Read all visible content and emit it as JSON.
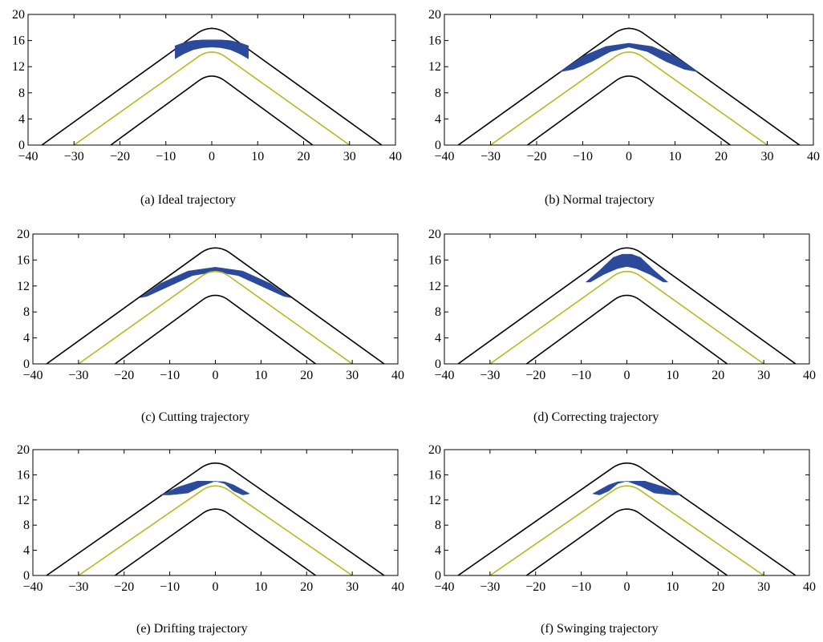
{
  "chart_data": [
    {
      "type": "area",
      "caption": "(a)  Ideal trajectory",
      "xlim": [
        -40,
        40
      ],
      "ylim": [
        0,
        20
      ],
      "xticks": [
        -40,
        -30,
        -20,
        -10,
        0,
        10,
        20,
        30,
        40
      ],
      "yticks": [
        0,
        4,
        8,
        12,
        16,
        20
      ],
      "xtick_labels": [
        "−40",
        "−30",
        "−20",
        "−10",
        "0",
        "10",
        "20",
        "30",
        "40"
      ],
      "ytick_labels": [
        "0",
        "4",
        "8",
        "12",
        "16",
        "20"
      ],
      "road_outer": {
        "half_width": 37,
        "apex": 18.7,
        "radius": 7
      },
      "road_inner": {
        "half_width": 22,
        "apex": 11.3,
        "radius": 6
      },
      "centerline": {
        "half_width": 30,
        "apex": 15,
        "radius": 6.5
      },
      "trajectory_region": {
        "upper": [
          [
            -8,
            15.2
          ],
          [
            -6,
            15.7
          ],
          [
            -4,
            16.0
          ],
          [
            -2,
            16.1
          ],
          [
            0,
            16.1
          ],
          [
            2,
            16.1
          ],
          [
            4,
            16.0
          ],
          [
            6,
            15.7
          ],
          [
            8,
            15.2
          ]
        ],
        "lower": [
          [
            8,
            13.2
          ],
          [
            6,
            14.0
          ],
          [
            4,
            14.6
          ],
          [
            2,
            14.9
          ],
          [
            0,
            15.0
          ],
          [
            -2,
            14.9
          ],
          [
            -4,
            14.6
          ],
          [
            -6,
            14.0
          ],
          [
            -8,
            13.2
          ]
        ]
      },
      "colors": {
        "trajectory": "#2b4a9c",
        "centerline": "#b8b820",
        "road": "#000000"
      }
    },
    {
      "type": "area",
      "caption": "(b)  Normal trajectory",
      "xlim": [
        -40,
        40
      ],
      "ylim": [
        0,
        20
      ],
      "xticks": [
        -40,
        -30,
        -20,
        -10,
        0,
        10,
        20,
        30,
        40
      ],
      "yticks": [
        0,
        4,
        8,
        12,
        16,
        20
      ],
      "xtick_labels": [
        "−40",
        "−30",
        "−20",
        "−10",
        "0",
        "10",
        "20",
        "30",
        "40"
      ],
      "ytick_labels": [
        "0",
        "4",
        "8",
        "12",
        "16",
        "20"
      ],
      "road_outer": {
        "half_width": 37,
        "apex": 18.7,
        "radius": 7
      },
      "road_inner": {
        "half_width": 22,
        "apex": 11.3,
        "radius": 6
      },
      "centerline": {
        "half_width": 30,
        "apex": 15,
        "radius": 6.5
      },
      "trajectory_region": {
        "upper": [
          [
            -15,
            11.2
          ],
          [
            -10,
            13.6
          ],
          [
            -5,
            15.1
          ],
          [
            0,
            15.6
          ],
          [
            5,
            15.1
          ],
          [
            10,
            13.6
          ],
          [
            15,
            11.2
          ]
        ],
        "lower": [
          [
            12,
            11.6
          ],
          [
            8,
            12.8
          ],
          [
            4,
            14.3
          ],
          [
            0,
            15.0
          ],
          [
            -4,
            14.3
          ],
          [
            -8,
            12.8
          ],
          [
            -12,
            11.6
          ]
        ]
      },
      "colors": {
        "trajectory": "#2b4a9c",
        "centerline": "#b8b820",
        "road": "#000000"
      }
    },
    {
      "type": "area",
      "caption": "(c)  Cutting trajectory",
      "xlim": [
        -40,
        40
      ],
      "ylim": [
        0,
        20
      ],
      "xticks": [
        -40,
        -30,
        -20,
        -10,
        0,
        10,
        20,
        30,
        40
      ],
      "yticks": [
        0,
        4,
        8,
        12,
        16,
        20
      ],
      "xtick_labels": [
        "−40",
        "−30",
        "−20",
        "−10",
        "0",
        "10",
        "20",
        "30",
        "40"
      ],
      "ytick_labels": [
        "0",
        "4",
        "8",
        "12",
        "16",
        "20"
      ],
      "road_outer": {
        "half_width": 37,
        "apex": 18.7,
        "radius": 7
      },
      "road_inner": {
        "half_width": 22,
        "apex": 11.3,
        "radius": 6
      },
      "centerline": {
        "half_width": 30,
        "apex": 15,
        "radius": 6.5
      },
      "trajectory_region": {
        "upper": [
          [
            -16.5,
            10.2
          ],
          [
            -12,
            12.4
          ],
          [
            -6,
            14.3
          ],
          [
            0,
            14.9
          ],
          [
            6,
            14.3
          ],
          [
            12,
            12.4
          ],
          [
            16.5,
            10.2
          ]
        ],
        "lower": [
          [
            15,
            10.4
          ],
          [
            10,
            12.0
          ],
          [
            5,
            13.6
          ],
          [
            0,
            14.2
          ],
          [
            -5,
            13.6
          ],
          [
            -10,
            12.0
          ],
          [
            -15,
            10.4
          ]
        ]
      },
      "colors": {
        "trajectory": "#2b4a9c",
        "centerline": "#b8b820",
        "road": "#000000"
      }
    },
    {
      "type": "area",
      "caption": "(d)  Correcting trajectory",
      "xlim": [
        -40,
        40
      ],
      "ylim": [
        0,
        20
      ],
      "xticks": [
        -40,
        -30,
        -20,
        -10,
        0,
        10,
        20,
        30,
        40
      ],
      "yticks": [
        0,
        4,
        8,
        12,
        16,
        20
      ],
      "xtick_labels": [
        "−40",
        "−30",
        "−20",
        "−10",
        "0",
        "10",
        "20",
        "30",
        "40"
      ],
      "ytick_labels": [
        "0",
        "4",
        "8",
        "12",
        "16",
        "20"
      ],
      "road_outer": {
        "half_width": 37,
        "apex": 18.7,
        "radius": 7
      },
      "road_inner": {
        "half_width": 22,
        "apex": 11.3,
        "radius": 6
      },
      "centerline": {
        "half_width": 30,
        "apex": 15,
        "radius": 6.5
      },
      "trajectory_region": {
        "upper": [
          [
            -9,
            12.6
          ],
          [
            -6,
            14.4
          ],
          [
            -3,
            16.4
          ],
          [
            -1,
            16.9
          ],
          [
            1,
            16.9
          ],
          [
            3,
            16.4
          ],
          [
            6,
            14.4
          ],
          [
            9,
            12.6
          ]
        ],
        "lower": [
          [
            8,
            12.6
          ],
          [
            5,
            13.8
          ],
          [
            2,
            14.7
          ],
          [
            0,
            15.0
          ],
          [
            -2,
            14.7
          ],
          [
            -5,
            13.8
          ],
          [
            -8,
            12.6
          ]
        ]
      },
      "colors": {
        "trajectory": "#2b4a9c",
        "centerline": "#b8b820",
        "road": "#000000"
      }
    },
    {
      "type": "area",
      "caption": "(e)  Drifting trajectory",
      "xlim": [
        -40,
        40
      ],
      "ylim": [
        0,
        20
      ],
      "xticks": [
        -40,
        -30,
        -20,
        -10,
        0,
        10,
        20,
        30,
        40
      ],
      "yticks": [
        0,
        4,
        8,
        12,
        16,
        20
      ],
      "xtick_labels": [
        "−40",
        "−30",
        "−20",
        "−10",
        "0",
        "10",
        "20",
        "30",
        "40"
      ],
      "ytick_labels": [
        "0",
        "4",
        "8",
        "12",
        "16",
        "20"
      ],
      "road_outer": {
        "half_width": 37,
        "apex": 18.7,
        "radius": 7
      },
      "road_inner": {
        "half_width": 22,
        "apex": 11.3,
        "radius": 6
      },
      "centerline": {
        "half_width": 30,
        "apex": 15,
        "radius": 6.5
      },
      "trajectory_region": {
        "upper": [
          [
            -12,
            12.8
          ],
          [
            -8,
            14.1
          ],
          [
            -4,
            15.0
          ],
          [
            -2,
            15.0
          ],
          [
            2,
            14.9
          ],
          [
            4,
            14.4
          ],
          [
            6,
            13.6
          ],
          [
            7.5,
            13.0
          ]
        ],
        "lower": [
          [
            6,
            12.8
          ],
          [
            4,
            13.4
          ],
          [
            2,
            14.6
          ],
          [
            0,
            15.0
          ],
          [
            -3,
            14.2
          ],
          [
            -6,
            13.1
          ],
          [
            -10,
            12.8
          ]
        ]
      },
      "colors": {
        "trajectory": "#2b4a9c",
        "centerline": "#b8b820",
        "road": "#000000"
      }
    },
    {
      "type": "area",
      "caption": "(f)  Swinging trajectory",
      "xlim": [
        -40,
        40
      ],
      "ylim": [
        0,
        20
      ],
      "xticks": [
        -40,
        -30,
        -20,
        -10,
        0,
        10,
        20,
        30,
        40
      ],
      "yticks": [
        0,
        4,
        8,
        12,
        16,
        20
      ],
      "xtick_labels": [
        "−40",
        "−30",
        "−20",
        "−10",
        "0",
        "10",
        "20",
        "30",
        "40"
      ],
      "ytick_labels": [
        "0",
        "4",
        "8",
        "12",
        "16",
        "20"
      ],
      "road_outer": {
        "half_width": 37,
        "apex": 18.7,
        "radius": 7
      },
      "road_inner": {
        "half_width": 22,
        "apex": 11.3,
        "radius": 6
      },
      "centerline": {
        "half_width": 30,
        "apex": 15,
        "radius": 6.5
      },
      "trajectory_region": {
        "upper": [
          [
            -7.5,
            13.0
          ],
          [
            -6,
            13.6
          ],
          [
            -4,
            14.4
          ],
          [
            -2,
            14.9
          ],
          [
            2,
            15.0
          ],
          [
            4,
            15.0
          ],
          [
            8,
            14.1
          ],
          [
            12,
            12.8
          ]
        ],
        "lower": [
          [
            10,
            12.8
          ],
          [
            6,
            13.1
          ],
          [
            3,
            14.2
          ],
          [
            0,
            15.0
          ],
          [
            -2,
            14.6
          ],
          [
            -4,
            13.4
          ],
          [
            -6,
            12.8
          ]
        ]
      },
      "colors": {
        "trajectory": "#2b4a9c",
        "centerline": "#b8b820",
        "road": "#000000"
      }
    }
  ]
}
